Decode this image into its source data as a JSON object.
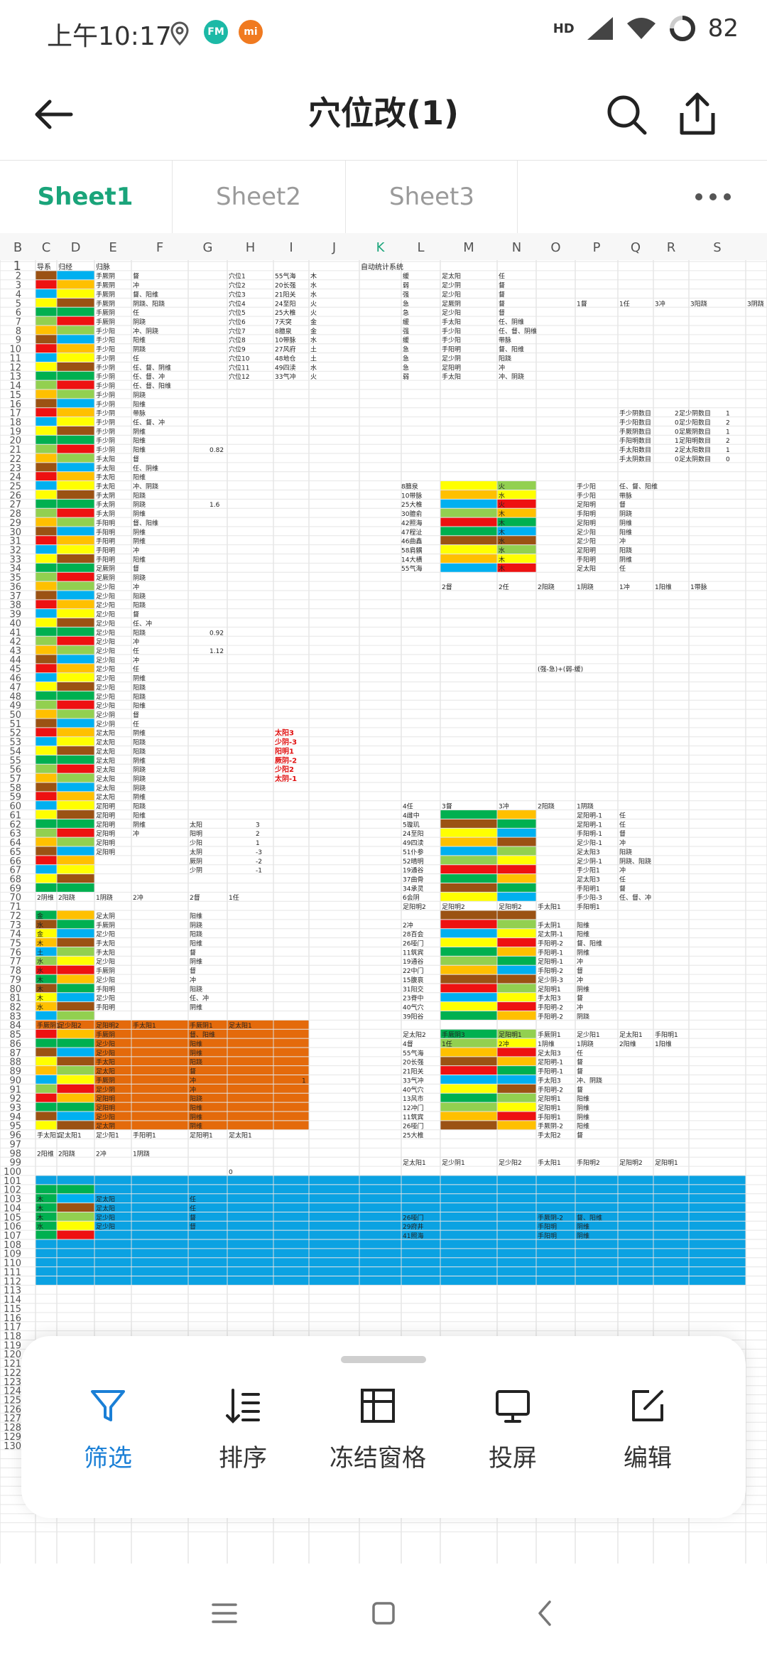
{
  "status": {
    "time": "上午10:17",
    "battery": "82",
    "network": "HD",
    "icons": [
      "location-icon",
      "fm-icon",
      "mi-icon"
    ]
  },
  "header": {
    "title": "穴位改(1)",
    "back_icon": "back-arrow-icon",
    "search_icon": "search-icon",
    "share_icon": "share-icon"
  },
  "tabs": [
    {
      "label": "Sheet1",
      "active": true
    },
    {
      "label": "Sheet2",
      "active": false
    },
    {
      "label": "Sheet3",
      "active": false
    }
  ],
  "more_icon": "more-icon",
  "sheet": {
    "column_headers": [
      "B",
      "C",
      "D",
      "E",
      "F",
      "G",
      "H",
      "I",
      "J",
      "K",
      "L",
      "M",
      "N",
      "O",
      "P",
      "Q",
      "R",
      "S"
    ],
    "row_numbers": [
      "1",
      "2",
      "3",
      "4",
      "5",
      "6",
      "7",
      "8",
      "9",
      "10",
      "11",
      "12",
      "13",
      "14",
      "15",
      "16",
      "17",
      "18",
      "19",
      "20",
      "21",
      "22",
      "23",
      "24",
      "25",
      "26",
      "27",
      "28",
      "29",
      "30",
      "31",
      "32",
      "33",
      "34",
      "35",
      "36",
      "37",
      "38",
      "39",
      "40",
      "41",
      "42",
      "43",
      "44",
      "45",
      "46",
      "47",
      "48",
      "49",
      "50",
      "51",
      "52",
      "53",
      "54",
      "55",
      "56",
      "57",
      "58",
      "59",
      "60",
      "61",
      "62",
      "63",
      "64",
      "65",
      "66",
      "67",
      "68",
      "69",
      "70",
      "71",
      "72",
      "73",
      "74",
      "75",
      "76",
      "77",
      "78",
      "79",
      "80",
      "81",
      "82",
      "83",
      "84",
      "85",
      "86",
      "87",
      "88",
      "89",
      "90",
      "91",
      "92",
      "93",
      "94",
      "95",
      "96",
      "97",
      "98",
      "99",
      "100",
      "101",
      "102",
      "103",
      "104",
      "105",
      "106",
      "107",
      "108",
      "109",
      "110",
      "111",
      "112",
      "113",
      "114",
      "115",
      "116",
      "117",
      "118",
      "119",
      "120",
      "121",
      "122",
      "123",
      "124",
      "125",
      "126",
      "127",
      "128",
      "129",
      "130"
    ],
    "header_row": [
      "导系",
      "归经",
      "归脉",
      "",
      "",
      "",
      "",
      "",
      "自动统计系统"
    ],
    "jingluo_col": [
      "手厥阴",
      "手厥阴",
      "手厥阴",
      "手厥阴",
      "手厥阴",
      "手厥阴",
      "手少阳",
      "手少阳",
      "手少阳",
      "手少阴",
      "手少阴",
      "手少阴",
      "手少阴",
      "手少阴",
      "手少阴",
      "手少阴",
      "手少阴",
      "手少阴",
      "手少阴",
      "手少阴",
      "手太阳",
      "手太阳",
      "手太阳",
      "手太阳",
      "手太阴",
      "手太阴",
      "手太阴",
      "手阳明",
      "手阳明",
      "手阳明",
      "手阳明",
      "手阳明",
      "足厥阴",
      "足厥阴",
      "足少阳",
      "足少阳",
      "足少阳",
      "足少阳",
      "足少阳",
      "足少阳",
      "足少阳",
      "足少阳",
      "足少阳",
      "足少阳",
      "足少阳",
      "足少阳",
      "足少阳",
      "足少阳",
      "足少阴",
      "足少阴",
      "足太阳",
      "足太阳",
      "足太阳",
      "足太阳",
      "足太阳",
      "足太阳",
      "足太阳",
      "足太阳",
      "足阳明",
      "足阳明",
      "足阳明",
      "足阳明",
      "足阳明",
      "足阳明"
    ],
    "mai_col": [
      "督",
      "冲",
      "督、阳维",
      "阴跷、阳跷",
      "任",
      "阴跷",
      "冲、阴跷",
      "阳维",
      "阴跷",
      "任",
      "任、督、阴维",
      "任、督、冲",
      "任、督、阳维",
      "阴跷",
      "阳维",
      "带脉",
      "任、督、冲",
      "阴维",
      "阳维",
      "阳维",
      "督",
      "任、阴维",
      "阳维",
      "冲、阴跷",
      "阳跷",
      "阴跷",
      "阴维",
      "督、阳维",
      "阴维",
      "阴维",
      "冲",
      "阳维",
      "督",
      "阴跷",
      "冲",
      "阳跷",
      "阳跷",
      "督",
      "任、冲",
      "阳跷",
      "冲",
      "任",
      "冲",
      "任",
      "阴维",
      "阳跷",
      "阳跷",
      "阳维",
      "督",
      "任",
      "阴维",
      "阳跷",
      "阳跷",
      "阴维",
      "阴跷",
      "阴跷",
      "阴跷",
      "阴维",
      "阳跷",
      "阳维",
      "阴维",
      "冲"
    ],
    "g_col": [
      "穴位1",
      "穴位2",
      "穴位3",
      "穴位4",
      "穴位5",
      "穴位6",
      "穴位7",
      "穴位8",
      "穴位9",
      "穴位10",
      "穴位11",
      "穴位12"
    ],
    "h_col": [
      "55气海",
      "20长强",
      "21阳关",
      "24至阳",
      "25大椎",
      "7天突",
      "8膻泉",
      "10带脉",
      "27风府",
      "48地仓",
      "49四渎",
      "33气冲"
    ],
    "i_col": [
      "木",
      "水",
      "水",
      "火",
      "火",
      "金",
      "金",
      "水",
      "土",
      "土",
      "水",
      "火"
    ],
    "j_col": [
      "缓",
      "弱",
      "强",
      "急",
      "急",
      "缓",
      "强",
      "缓",
      "急",
      "急",
      "急",
      "弱"
    ],
    "k_col": [
      "足太阳",
      "足少阴",
      "足少阳",
      "足厥阴",
      "足少阳",
      "手太阳",
      "手少阳",
      "手少阳",
      "手阳明",
      "足少阴",
      "足阳明",
      "手太阳"
    ],
    "l_col": [
      "任",
      "督",
      "督",
      "督",
      "督",
      "任、阴维",
      "任、督、阴维",
      "带脉",
      "督、阳维",
      "阳跷",
      "冲",
      "冲、阴跷"
    ],
    "row5_right": [
      "1督",
      "1任",
      "3冲",
      "3阳跷",
      "3阴跷",
      "2阴维"
    ],
    "count_table": [
      [
        "手少阴数目",
        "2",
        "足少阴数目",
        "1"
      ],
      [
        "手少阳数目",
        "0",
        "足少阳数目",
        "2"
      ],
      [
        "手厥阴数目",
        "0",
        "足厥阴数目",
        "1"
      ],
      [
        "手阳明数目",
        "1",
        "足阳明数目",
        "2"
      ],
      [
        "手太阳数目",
        "2",
        "足太阳数目",
        "1"
      ],
      [
        "手太阴数目",
        "0",
        "足太阴数目",
        "0"
      ]
    ],
    "f_values": [
      "0.82",
      "1.6",
      "0.92",
      "1.12"
    ],
    "block1": {
      "labels": [
        "8膻泉",
        "10带脉",
        "25大椎",
        "30膻俞",
        "42照海",
        "47程沚",
        "46曲鑫",
        "58肩髃",
        "14大横",
        "55气海"
      ],
      "m_col": [
        "火",
        "水",
        "火",
        "木",
        "木",
        "木",
        "水",
        "水",
        "木",
        "木"
      ],
      "n_col": [
        "手少阳",
        "手少阳",
        "足阳明",
        "手阳明",
        "足阳明",
        "足少阳",
        "足少阳",
        "足阳明",
        "手阳明",
        "足太阳"
      ],
      "o_col": [
        "任、督、阳维",
        "带脉",
        "督",
        "阴跷",
        "阴维",
        "阳维",
        "冲",
        "阳跷",
        "阴维",
        "任"
      ],
      "footer": [
        "2督",
        "2任",
        "2阳跷",
        "1阴跷",
        "1冲",
        "1阳维",
        "1带脉"
      ]
    },
    "note": "(强-急)+(弱-缓)",
    "red_list": [
      "太阳3",
      "少阴-3",
      "阳明1",
      "厥阴-2",
      "少阳2",
      "太阴-1"
    ],
    "block2": {
      "header": [
        "4任",
        "3督",
        "3冲",
        "2阳跷",
        "1阴跷"
      ],
      "labels": [
        "4雌中",
        "5璇玑",
        "24至阳",
        "49四渎",
        "51仆参",
        "52晴明",
        "19通谷",
        "37曲骨",
        "34承灵",
        "6会阴"
      ],
      "n_col": [
        "足阳明-1",
        "足阳明-1",
        "手阳明-1",
        "足少阳-1",
        "足太阳3",
        "足少阴-1",
        "手少阳1",
        "足太阳3",
        "手阳明1",
        "手少阳-3"
      ],
      "o_col": [
        "任",
        "任",
        "督",
        "冲",
        "阳跷",
        "阴跷、阳跷",
        "冲",
        "任",
        "督",
        "任、督、冲"
      ]
    },
    "meridians_mid": [
      "太阳",
      "阳明",
      "少阳",
      "太阴",
      "厥阴",
      "少阴"
    ],
    "meridians_mid_vals": [
      "3",
      "2",
      "1",
      "-3",
      "-2",
      "-1"
    ],
    "row70": [
      "2阴维",
      "2阳跷",
      "1阴跷",
      "2冲",
      "2督",
      "1任"
    ],
    "row71_right": [
      "足阳明2",
      "足阳明2",
      "足阳明2",
      "手太阳1",
      "手阳明1"
    ],
    "block3": {
      "elements": [
        "金",
        "水",
        "金",
        "木",
        "土",
        "水",
        "水",
        "木",
        "木",
        "木",
        "水"
      ],
      "e_col": [
        "足太阴",
        "手厥阴",
        "足少阳",
        "手太阳",
        "手太阳",
        "足少阳",
        "手厥阴",
        "足少阳",
        "手阳明",
        "足少阳",
        "手阳明"
      ],
      "f_col": [
        "阳维",
        "阴跷",
        "阳跷",
        "阳维",
        "督",
        "阴维",
        "督",
        "冲",
        "阳跷",
        "任、冲",
        "阴维"
      ]
    },
    "block3_right": {
      "labels": [
        "2冲",
        "28百会",
        "26哑门",
        "11筑宾",
        "19通谷",
        "22中门",
        "15腹哀",
        "31阳交",
        "23脊中",
        "40气穴",
        "39阳谷"
      ],
      "o_col": [
        "手太阴1",
        "足太阴-1",
        "手阳明-2",
        "手阳明-1",
        "足阳明-1",
        "手阳明-2",
        "足少阴-3",
        "足阳明1",
        "手太阳3",
        "手阳明-2",
        "手阳明-2"
      ],
      "p_col": [
        "阳维",
        "阳维",
        "督、阳维",
        "阴维",
        "冲",
        "督",
        "冲",
        "阴维",
        "督",
        "冲",
        "阴跷"
      ]
    },
    "row84": [
      "手厥阴1",
      "足少阳2",
      "足阳明2",
      "手太阳1",
      "手厥阴1",
      "足太阳1"
    ],
    "row84_right": [
      "足阳明2",
      "足阳明2",
      "足阳明2",
      "手太阳1",
      "手阳明1"
    ],
    "orange_block": {
      "e_col": [
        "手厥阴",
        "足少阳",
        "足少阳",
        "手太阳",
        "足太阳",
        "手厥阴",
        "足少阴",
        "足阳明",
        "足阳明",
        "足少阳",
        "足太阴"
      ],
      "f_col": [
        "督、阳维",
        "阳维",
        "阴维",
        "阳跷",
        "督",
        "冲",
        "冲",
        "阳跷",
        "阳维",
        "阴维",
        "阴维"
      ],
      "row96": [
        "手太阳1",
        "足太阳1",
        "足少阳1",
        "手阳明1",
        "足阳明1",
        "足太阳1"
      ],
      "row97": [
        "2阳维",
        "2阳跷",
        "2冲",
        "1阴跷"
      ],
      "zero": "0",
      "one": "1"
    },
    "orange_right": {
      "header": [
        "足太阳2",
        "手厥阴3",
        "足阳明1",
        "手厥阴1",
        "足少阳1",
        "足太阳1",
        "手阳明1"
      ],
      "row": [
        "4督",
        "1任",
        "2冲",
        "1阴维",
        "1阴跷",
        "2阳维",
        "1阳维"
      ],
      "labels": [
        "55气海",
        "20长强",
        "21阳关",
        "33气冲",
        "40气穴",
        "13风市",
        "12冲门",
        "11筑宾",
        "26哑门",
        "25大椎"
      ],
      "o_col": [
        "足太阳3",
        "足阳明-1",
        "手阳明-1",
        "手太阳3",
        "手阳明-2",
        "足阳明1",
        "足阳明1",
        "手阳明1",
        "手厥阴-2",
        "手太阳2"
      ],
      "p_col": [
        "任",
        "督",
        "督",
        "冲、阴跷",
        "督",
        "阳维",
        "阴维",
        "阴维",
        "阳维",
        "督"
      ],
      "footer": [
        "足太阳1",
        "足少阴1",
        "足少阳2",
        "手太阳1",
        "手阳明2",
        "足阳明2",
        "足阳明1"
      ]
    },
    "blue_block": {
      "elements": [
        "木",
        "木",
        "木",
        "水"
      ],
      "e_col": [
        "足太阳",
        "足太阳",
        "足少阳",
        "足少阳"
      ],
      "f_col": [
        "任",
        "任",
        "督",
        "督"
      ],
      "labels": [
        "26哑门",
        "29府井",
        "41照海"
      ],
      "n_col": [
        "手厥阴-2",
        "手阳明",
        "手阳明"
      ],
      "o_col": [
        "督、阳维",
        "阴维",
        "阴维"
      ]
    },
    "bottom_fragment": [
      "15腹哀",
      "水",
      "弱",
      "足少阳"
    ]
  },
  "actions": [
    {
      "label": "筛选",
      "icon": "filter-icon",
      "active": true
    },
    {
      "label": "排序",
      "icon": "sort-icon",
      "active": false
    },
    {
      "label": "冻结窗格",
      "icon": "freeze-panes-icon",
      "active": false
    },
    {
      "label": "投屏",
      "icon": "cast-screen-icon",
      "active": false
    },
    {
      "label": "编辑",
      "icon": "edit-icon",
      "active": false
    }
  ],
  "nav": {
    "menu_icon": "menu-icon",
    "home_icon": "home-icon",
    "back_icon": "nav-back-icon"
  },
  "colors": {
    "accent_green": "#1aa47a",
    "accent_blue": "#1a7fd6",
    "orange": "#e46a0b",
    "cyan": "#0ba2e2",
    "red": "#ee1111",
    "yellow": "#ffff00",
    "green": "#92d050",
    "brown": "#9b5213",
    "dgreen": "#00b050",
    "blue": "#00b0f0",
    "gold": "#ffc000"
  }
}
